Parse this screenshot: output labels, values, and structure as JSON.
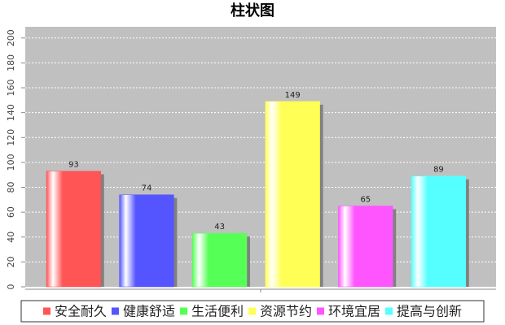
{
  "chart_data": {
    "type": "bar",
    "title": "柱状图",
    "categories": [
      null
    ],
    "series": [
      {
        "name": "安全耐久",
        "color": "#ff5555",
        "values": [
          93
        ]
      },
      {
        "name": "健康舒适",
        "color": "#5555ff",
        "values": [
          74
        ]
      },
      {
        "name": "生活便利",
        "color": "#55ff55",
        "values": [
          43
        ]
      },
      {
        "name": "资源节约",
        "color": "#ffff55",
        "values": [
          149
        ]
      },
      {
        "name": "环境宜居",
        "color": "#ff55ff",
        "values": [
          65
        ]
      },
      {
        "name": "提高与创新",
        "color": "#55ffff",
        "values": [
          89
        ]
      }
    ],
    "ylim": [
      0,
      209
    ],
    "yticks": [
      0,
      20,
      40,
      60,
      80,
      100,
      120,
      140,
      160,
      180,
      200
    ],
    "grid": true,
    "legend": "bottom"
  }
}
